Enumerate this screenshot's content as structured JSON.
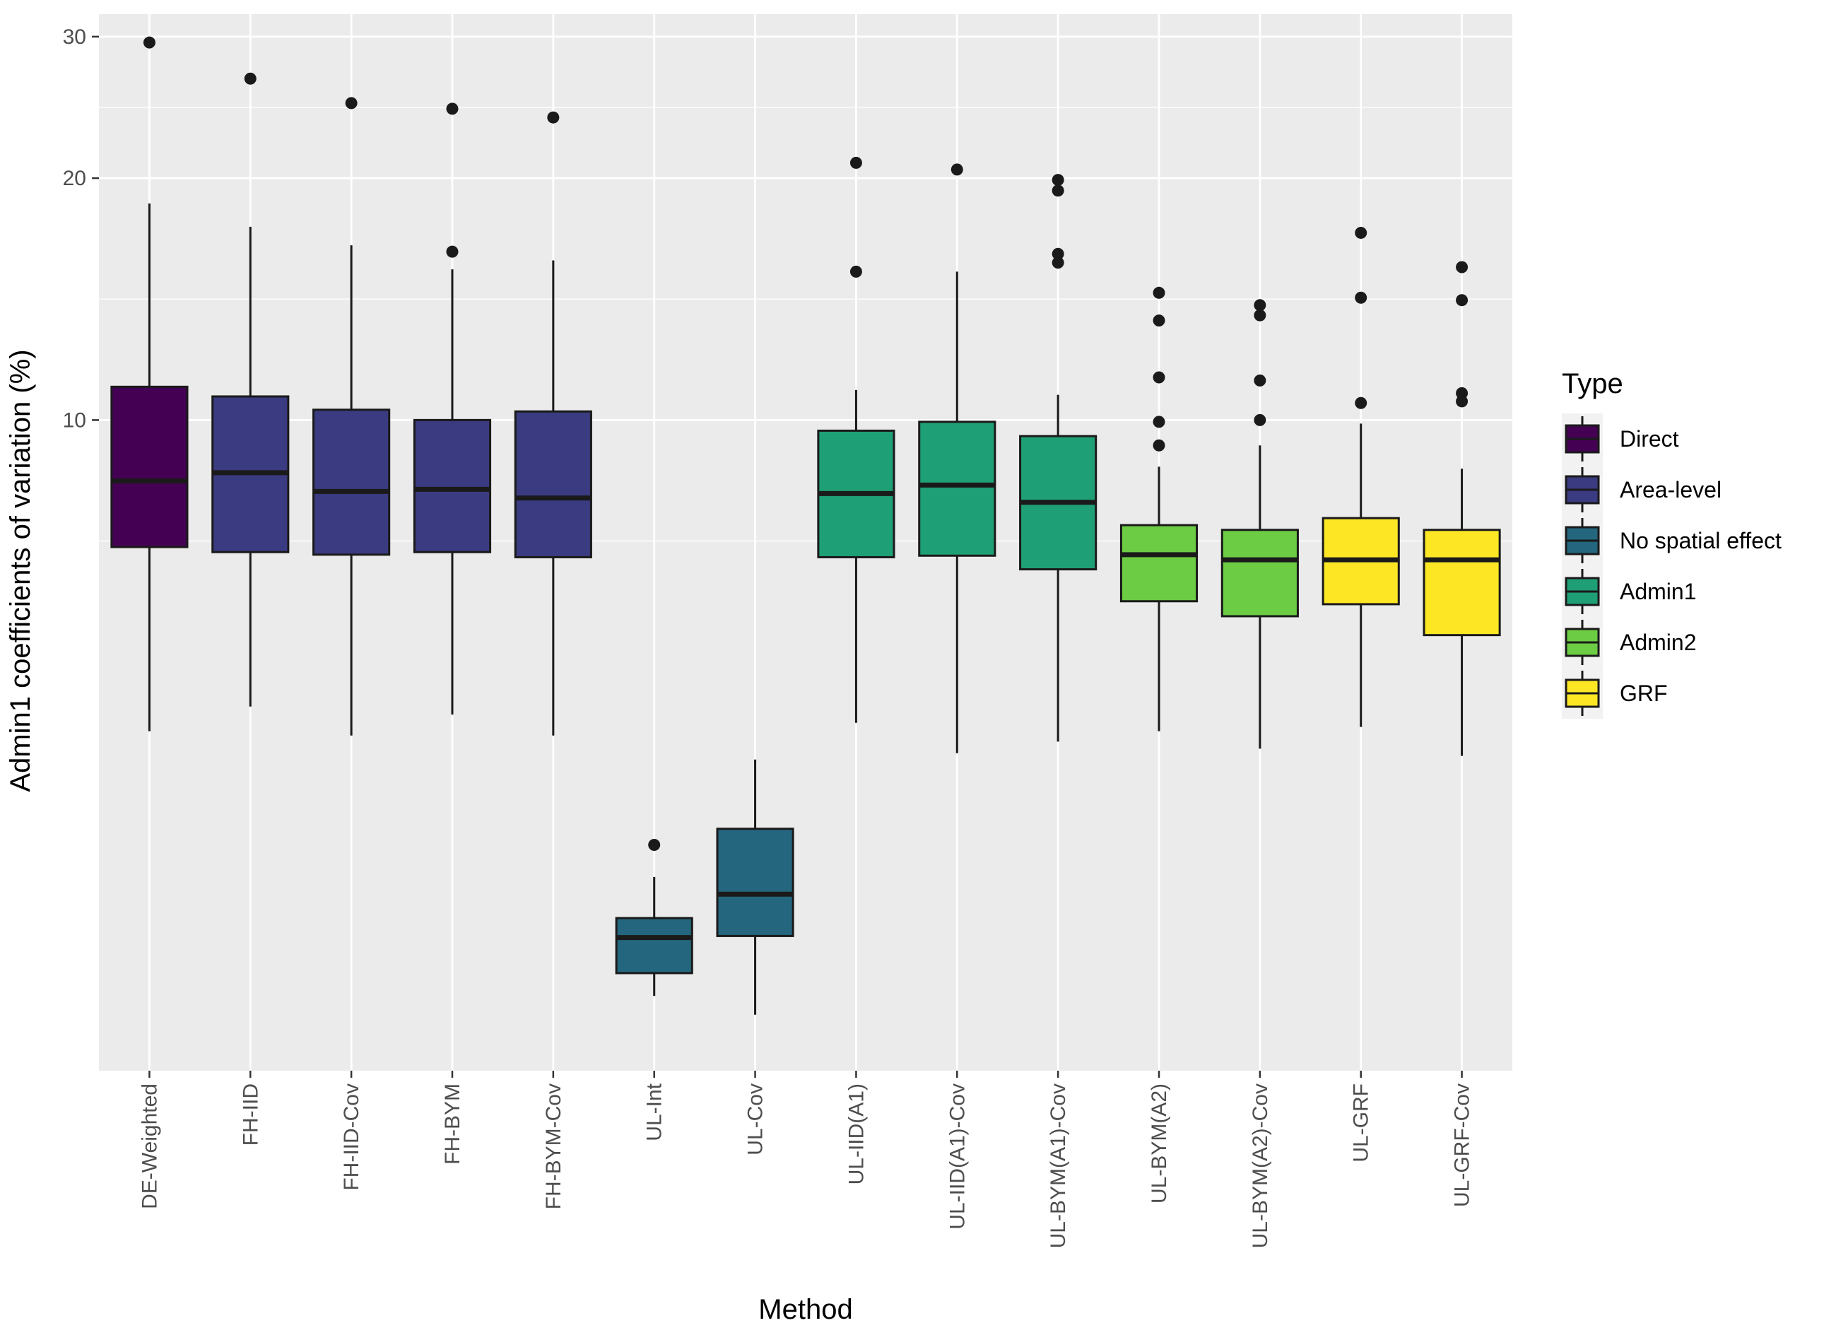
{
  "chart_data": {
    "type": "box",
    "xlabel": "Method",
    "ylabel": "Admin1 coefficients of variation (%)",
    "y_scale": "log",
    "ylim": [
      1.55,
      32
    ],
    "yticks": [
      10,
      20,
      30
    ],
    "grid": true,
    "legend": {
      "title": "Type",
      "position": "right",
      "entries": [
        {
          "name": "Direct",
          "color": "#440154"
        },
        {
          "name": "Area-level",
          "color": "#3B3B81"
        },
        {
          "name": "No spatial effect",
          "color": "#24667E"
        },
        {
          "name": "Admin1",
          "color": "#1F9F76"
        },
        {
          "name": "Admin2",
          "color": "#6CCC44"
        },
        {
          "name": "GRF",
          "color": "#FDE725"
        }
      ]
    },
    "categories": [
      "DE-Weighted",
      "FH-IID",
      "FH-IID-Cov",
      "FH-BYM",
      "FH-BYM-Cov",
      "UL-Int",
      "UL-Cov",
      "UL-IID(A1)",
      "UL-IID(A1)-Cov",
      "UL-BYM(A1)-Cov",
      "UL-BYM(A2)",
      "UL-BYM(A2)-Cov",
      "UL-GRF",
      "UL-GRF-Cov"
    ],
    "boxes": [
      {
        "label": "DE-Weighted",
        "type": "Direct",
        "whisker_low": 4.1,
        "q1": 6.95,
        "median": 8.4,
        "q3": 11.0,
        "whisker_high": 18.6,
        "outliers": [
          29.5
        ]
      },
      {
        "label": "FH-IID",
        "type": "Area-level",
        "whisker_low": 4.4,
        "q1": 6.85,
        "median": 8.6,
        "q3": 10.7,
        "whisker_high": 17.4,
        "outliers": [
          26.6
        ]
      },
      {
        "label": "FH-IID-Cov",
        "type": "Area-level",
        "whisker_low": 4.05,
        "q1": 6.8,
        "median": 8.15,
        "q3": 10.3,
        "whisker_high": 16.5,
        "outliers": [
          24.8
        ]
      },
      {
        "label": "FH-BYM",
        "type": "Area-level",
        "whisker_low": 4.3,
        "q1": 6.85,
        "median": 8.2,
        "q3": 10.0,
        "whisker_high": 15.4,
        "outliers": [
          24.4,
          16.2
        ]
      },
      {
        "label": "FH-BYM-Cov",
        "type": "Area-level",
        "whisker_low": 4.05,
        "q1": 6.75,
        "median": 8.0,
        "q3": 10.25,
        "whisker_high": 15.8,
        "outliers": [
          23.8
        ]
      },
      {
        "label": "UL-Int",
        "type": "No spatial effect",
        "whisker_low": 1.92,
        "q1": 2.05,
        "median": 2.27,
        "q3": 2.4,
        "whisker_high": 2.7,
        "outliers": [
          2.96
        ]
      },
      {
        "label": "UL-Cov",
        "type": "No spatial effect",
        "whisker_low": 1.82,
        "q1": 2.28,
        "median": 2.57,
        "q3": 3.1,
        "whisker_high": 3.78,
        "outliers": []
      },
      {
        "label": "UL-IID(A1)",
        "type": "Admin1",
        "whisker_low": 4.2,
        "q1": 6.75,
        "median": 8.1,
        "q3": 9.7,
        "whisker_high": 10.9,
        "outliers": [
          20.9,
          15.3
        ]
      },
      {
        "label": "UL-IID(A1)-Cov",
        "type": "Admin1",
        "whisker_low": 3.85,
        "q1": 6.78,
        "median": 8.3,
        "q3": 9.95,
        "whisker_high": 15.3,
        "outliers": [
          20.5
        ]
      },
      {
        "label": "UL-BYM(A1)-Cov",
        "type": "Admin1",
        "whisker_low": 3.98,
        "q1": 6.52,
        "median": 7.9,
        "q3": 9.55,
        "whisker_high": 10.75,
        "outliers": [
          19.9,
          19.3,
          16.1,
          15.7
        ]
      },
      {
        "label": "UL-BYM(A2)",
        "type": "Admin2",
        "whisker_low": 4.1,
        "q1": 5.95,
        "median": 6.8,
        "q3": 7.4,
        "whisker_high": 8.75,
        "outliers": [
          14.4,
          13.3,
          11.3,
          9.95,
          9.3
        ]
      },
      {
        "label": "UL-BYM(A2)-Cov",
        "type": "Admin2",
        "whisker_low": 3.9,
        "q1": 5.7,
        "median": 6.7,
        "q3": 7.3,
        "whisker_high": 9.3,
        "outliers": [
          13.9,
          13.5,
          11.2,
          10.0
        ]
      },
      {
        "label": "UL-GRF",
        "type": "GRF",
        "whisker_low": 4.15,
        "q1": 5.9,
        "median": 6.7,
        "q3": 7.55,
        "whisker_high": 9.9,
        "outliers": [
          17.1,
          14.2,
          10.5
        ]
      },
      {
        "label": "UL-GRF-Cov",
        "type": "GRF",
        "whisker_low": 3.82,
        "q1": 5.4,
        "median": 6.7,
        "q3": 7.3,
        "whisker_high": 8.7,
        "outliers": [
          15.5,
          14.1,
          10.8,
          10.55
        ]
      }
    ]
  }
}
